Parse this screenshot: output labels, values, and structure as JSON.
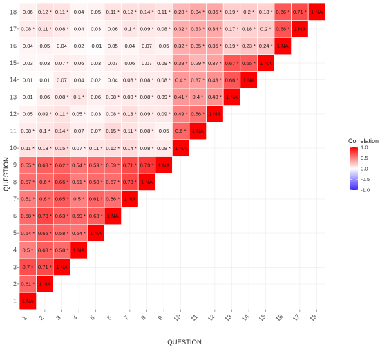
{
  "chart_data": {
    "type": "heatmap",
    "title": "",
    "xlabel": "QUESTION",
    "ylabel": "QUESTION",
    "x_categories": [
      "1",
      "2",
      "3",
      "4",
      "5",
      "6",
      "7",
      "8",
      "9",
      "10",
      "11",
      "12",
      "13",
      "14",
      "15",
      "16",
      "17",
      "18"
    ],
    "y_categories": [
      "1",
      "2",
      "3",
      "4",
      "5",
      "6",
      "7",
      "8",
      "9",
      "10",
      "11",
      "12",
      "13",
      "14",
      "15",
      "16",
      "17",
      "18"
    ],
    "grid": true,
    "legend": {
      "title": "Correlation",
      "ticks": [
        "1.0",
        "0.5",
        "0.0",
        "-0.5",
        "-1.0"
      ],
      "tick_values": [
        1.0,
        0.5,
        0.0,
        -0.5,
        -1.0
      ],
      "range": [
        -1,
        1
      ],
      "placement": "right",
      "colors": {
        "low": "#3b26ff",
        "mid": "#ffffff",
        "high": "#ff0000"
      }
    },
    "cells": [
      [
        1,
        1,
        "1 NA"
      ],
      [
        1,
        2,
        "0.61 *"
      ],
      [
        2,
        2,
        "1 NA"
      ],
      [
        1,
        3,
        "0.7 *"
      ],
      [
        2,
        3,
        "0.71 *"
      ],
      [
        3,
        3,
        "1 NA"
      ],
      [
        1,
        4,
        "0.5 *"
      ],
      [
        2,
        4,
        "0.63 *"
      ],
      [
        3,
        4,
        "0.58 *"
      ],
      [
        4,
        4,
        "1 NA"
      ],
      [
        1,
        5,
        "0.54 *"
      ],
      [
        2,
        5,
        "0.65 *"
      ],
      [
        3,
        5,
        "0.58 *"
      ],
      [
        4,
        5,
        "0.54 *"
      ],
      [
        5,
        5,
        "1 NA"
      ],
      [
        1,
        6,
        "0.58 *"
      ],
      [
        2,
        6,
        "0.73 *"
      ],
      [
        3,
        6,
        "0.63 *"
      ],
      [
        4,
        6,
        "0.59 *"
      ],
      [
        5,
        6,
        "0.63 *"
      ],
      [
        6,
        6,
        "1 NA"
      ],
      [
        1,
        7,
        "0.51 *"
      ],
      [
        2,
        7,
        "0.6 *"
      ],
      [
        3,
        7,
        "0.65 *"
      ],
      [
        4,
        7,
        "0.5 *"
      ],
      [
        5,
        7,
        "0.61 *"
      ],
      [
        6,
        7,
        "0.56 *"
      ],
      [
        7,
        7,
        "1 NA"
      ],
      [
        1,
        8,
        "0.57 *"
      ],
      [
        2,
        8,
        "0.6 *"
      ],
      [
        3,
        8,
        "0.66 *"
      ],
      [
        4,
        8,
        "0.51 *"
      ],
      [
        5,
        8,
        "0.58 *"
      ],
      [
        6,
        8,
        "0.57 *"
      ],
      [
        7,
        8,
        "0.73 *"
      ],
      [
        8,
        8,
        "1 NA"
      ],
      [
        1,
        9,
        "0.55 *"
      ],
      [
        2,
        9,
        "0.63 *"
      ],
      [
        3,
        9,
        "0.62 *"
      ],
      [
        4,
        9,
        "0.54 *"
      ],
      [
        5,
        9,
        "0.59 *"
      ],
      [
        6,
        9,
        "0.59 *"
      ],
      [
        7,
        9,
        "0.71 *"
      ],
      [
        8,
        9,
        "0.79 *"
      ],
      [
        9,
        9,
        "1 NA"
      ],
      [
        1,
        10,
        "0.11 *"
      ],
      [
        2,
        10,
        "0.13 *"
      ],
      [
        3,
        10,
        "0.15 *"
      ],
      [
        4,
        10,
        "0.07 *"
      ],
      [
        5,
        10,
        "0.11 *"
      ],
      [
        6,
        10,
        "0.12 *"
      ],
      [
        7,
        10,
        "0.14 *"
      ],
      [
        8,
        10,
        "0.08 *"
      ],
      [
        9,
        10,
        "0.08 *"
      ],
      [
        10,
        10,
        "1 NA"
      ],
      [
        1,
        11,
        "0.08 *"
      ],
      [
        2,
        11,
        "0.1 *"
      ],
      [
        3,
        11,
        "0.14 *"
      ],
      [
        4,
        11,
        "0.07"
      ],
      [
        5,
        11,
        "0.07"
      ],
      [
        6,
        11,
        "0.15 *"
      ],
      [
        7,
        11,
        "0.11 *"
      ],
      [
        8,
        11,
        "0.08 *"
      ],
      [
        9,
        11,
        "0.05"
      ],
      [
        10,
        11,
        "0.6 *"
      ],
      [
        11,
        11,
        "1 NA"
      ],
      [
        1,
        12,
        "0.05"
      ],
      [
        2,
        12,
        "0.09 *"
      ],
      [
        3,
        12,
        "0.11 *"
      ],
      [
        4,
        12,
        "0.05 *"
      ],
      [
        5,
        12,
        "0.03"
      ],
      [
        6,
        12,
        "0.08 *"
      ],
      [
        7,
        12,
        "0.13 *"
      ],
      [
        8,
        12,
        "0.09 *"
      ],
      [
        9,
        12,
        "0.09 *"
      ],
      [
        10,
        12,
        "0.49 *"
      ],
      [
        11,
        12,
        "0.56 *"
      ],
      [
        12,
        12,
        "1 NA"
      ],
      [
        1,
        13,
        "0.01"
      ],
      [
        2,
        13,
        "0.06"
      ],
      [
        3,
        13,
        "0.08 *"
      ],
      [
        4,
        13,
        "0.1 *"
      ],
      [
        5,
        13,
        "0.06"
      ],
      [
        6,
        13,
        "0.08 *"
      ],
      [
        7,
        13,
        "0.08 *"
      ],
      [
        8,
        13,
        "0.08 *"
      ],
      [
        9,
        13,
        "0.09 *"
      ],
      [
        10,
        13,
        "0.41 *"
      ],
      [
        11,
        13,
        "0.4 *"
      ],
      [
        12,
        13,
        "0.43 *"
      ],
      [
        13,
        13,
        "1 NA"
      ],
      [
        1,
        14,
        "0.01"
      ],
      [
        2,
        14,
        "0.01"
      ],
      [
        3,
        14,
        "0.07"
      ],
      [
        4,
        14,
        "0.04"
      ],
      [
        5,
        14,
        "0.02"
      ],
      [
        6,
        14,
        "0.04"
      ],
      [
        7,
        14,
        "0.08 *"
      ],
      [
        8,
        14,
        "0.08 *"
      ],
      [
        9,
        14,
        "0.08 *"
      ],
      [
        10,
        14,
        "0.4 *"
      ],
      [
        11,
        14,
        "0.37 *"
      ],
      [
        12,
        14,
        "0.43 *"
      ],
      [
        13,
        14,
        "0.66 *"
      ],
      [
        14,
        14,
        "1 NA"
      ],
      [
        1,
        15,
        "0.03"
      ],
      [
        2,
        15,
        "0.03"
      ],
      [
        3,
        15,
        "0.07 *"
      ],
      [
        4,
        15,
        "0.06"
      ],
      [
        5,
        15,
        "0.03"
      ],
      [
        6,
        15,
        "0.07"
      ],
      [
        7,
        15,
        "0.06"
      ],
      [
        8,
        15,
        "0.07"
      ],
      [
        9,
        15,
        "0.09 *"
      ],
      [
        10,
        15,
        "0.39 *"
      ],
      [
        11,
        15,
        "0.29 *"
      ],
      [
        12,
        15,
        "0.37 *"
      ],
      [
        13,
        15,
        "0.67 *"
      ],
      [
        14,
        15,
        "0.65 *"
      ],
      [
        15,
        15,
        "1 NA"
      ],
      [
        1,
        16,
        "0.04"
      ],
      [
        2,
        16,
        "0.05"
      ],
      [
        3,
        16,
        "0.04"
      ],
      [
        4,
        16,
        "0.02"
      ],
      [
        5,
        16,
        "-0.01"
      ],
      [
        6,
        16,
        "0.05"
      ],
      [
        7,
        16,
        "0.04"
      ],
      [
        8,
        16,
        "0.07"
      ],
      [
        9,
        16,
        "0.05"
      ],
      [
        10,
        16,
        "0.32 *"
      ],
      [
        11,
        16,
        "0.35 *"
      ],
      [
        12,
        16,
        "0.35 *"
      ],
      [
        13,
        16,
        "0.19 *"
      ],
      [
        14,
        16,
        "0.23 *"
      ],
      [
        15,
        16,
        "0.24 *"
      ],
      [
        16,
        16,
        "1 NA"
      ],
      [
        1,
        17,
        "0.08 *"
      ],
      [
        2,
        17,
        "0.11 *"
      ],
      [
        3,
        17,
        "0.08 *"
      ],
      [
        4,
        17,
        "0.04"
      ],
      [
        5,
        17,
        "0.03"
      ],
      [
        6,
        17,
        "0.06"
      ],
      [
        7,
        17,
        "0.1 *"
      ],
      [
        8,
        17,
        "0.09 *"
      ],
      [
        9,
        17,
        "0.08 *"
      ],
      [
        10,
        17,
        "0.32 *"
      ],
      [
        11,
        17,
        "0.33 *"
      ],
      [
        12,
        17,
        "0.34 *"
      ],
      [
        13,
        17,
        "0.17 *"
      ],
      [
        14,
        17,
        "0.18 *"
      ],
      [
        15,
        17,
        "0.2 *"
      ],
      [
        16,
        17,
        "0.68 *"
      ],
      [
        17,
        17,
        "1 NA"
      ],
      [
        1,
        18,
        "0.06"
      ],
      [
        2,
        18,
        "0.12 *"
      ],
      [
        3,
        18,
        "0.11 *"
      ],
      [
        4,
        18,
        "0.04"
      ],
      [
        5,
        18,
        "0.05"
      ],
      [
        6,
        18,
        "0.11 *"
      ],
      [
        7,
        18,
        "0.12 *"
      ],
      [
        8,
        18,
        "0.14 *"
      ],
      [
        9,
        18,
        "0.11 *"
      ],
      [
        10,
        18,
        "0.28 *"
      ],
      [
        11,
        18,
        "0.34 *"
      ],
      [
        12,
        18,
        "0.35 *"
      ],
      [
        13,
        18,
        "0.19 *"
      ],
      [
        14,
        18,
        "0.2 *"
      ],
      [
        15,
        18,
        "0.18 *"
      ],
      [
        16,
        18,
        "0.66 *"
      ],
      [
        17,
        18,
        "0.71 *"
      ],
      [
        18,
        18,
        "1 NA"
      ]
    ]
  }
}
